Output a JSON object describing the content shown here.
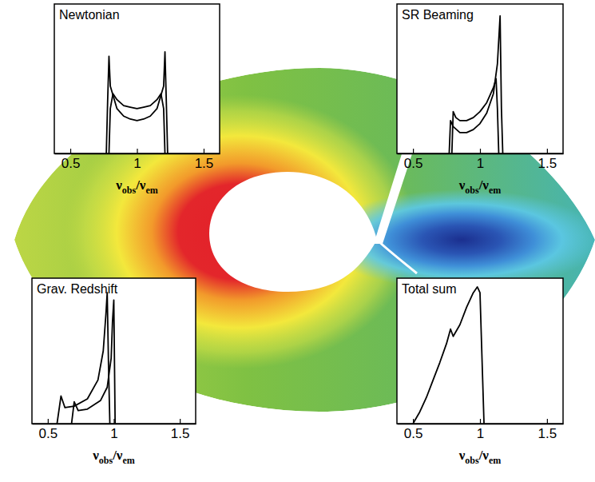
{
  "chart_data": [
    {
      "type": "line",
      "title": "Newtonian",
      "x_label": "νobs/νem",
      "xlim": [
        0.38,
        1.62
      ],
      "xticks": [
        0.5,
        1,
        1.5
      ],
      "ylim": [
        0,
        1
      ],
      "tick_labels": "x",
      "series": [
        {
          "color": "#000000",
          "x": [
            0.77,
            0.78,
            0.79,
            0.8,
            0.85,
            0.9,
            0.95,
            1.0,
            1.05,
            1.1,
            1.15,
            1.2,
            1.21,
            1.22,
            1.23
          ],
          "values": [
            0,
            0.35,
            0.65,
            0.45,
            0.3,
            0.25,
            0.23,
            0.22,
            0.23,
            0.25,
            0.3,
            0.45,
            0.68,
            0.35,
            0
          ]
        },
        {
          "color": "#000000",
          "x": [
            0.79,
            0.8,
            0.82,
            0.85,
            0.9,
            0.95,
            1.0,
            1.05,
            1.1,
            1.15,
            1.18,
            1.2,
            1.21
          ],
          "values": [
            0,
            0.3,
            0.4,
            0.36,
            0.32,
            0.31,
            0.3,
            0.31,
            0.32,
            0.36,
            0.4,
            0.3,
            0
          ]
        }
      ]
    },
    {
      "type": "line",
      "title": "SR Beaming",
      "x_label": "νobs/νem",
      "xlim": [
        0.38,
        1.62
      ],
      "xticks": [
        0.5,
        1,
        1.5
      ],
      "ylim": [
        0,
        1
      ],
      "tick_labels": "x",
      "series": [
        {
          "color": "#000000",
          "x": [
            0.77,
            0.78,
            0.8,
            0.85,
            0.9,
            0.95,
            1.0,
            1.05,
            1.1,
            1.13,
            1.15,
            1.16,
            1.17
          ],
          "values": [
            0,
            0.22,
            0.18,
            0.14,
            0.14,
            0.16,
            0.2,
            0.27,
            0.4,
            0.6,
            0.92,
            0.3,
            0
          ]
        },
        {
          "color": "#000000",
          "x": [
            0.79,
            0.8,
            0.82,
            0.85,
            0.9,
            0.95,
            1.0,
            1.05,
            1.1,
            1.12,
            1.13,
            1.14
          ],
          "values": [
            0,
            0.28,
            0.24,
            0.22,
            0.22,
            0.24,
            0.28,
            0.34,
            0.44,
            0.5,
            0.3,
            0
          ]
        }
      ]
    },
    {
      "type": "line",
      "title": "Grav. Redshift",
      "x_label": "νobs/νem",
      "xlim": [
        0.38,
        1.62
      ],
      "xticks": [
        0.5,
        1,
        1.5
      ],
      "ylim": [
        0,
        1
      ],
      "tick_labels": "x",
      "series": [
        {
          "color": "#000000",
          "x": [
            0.57,
            0.6,
            0.63,
            0.7,
            0.8,
            0.88,
            0.92,
            0.94,
            0.95,
            0.96,
            0.97
          ],
          "values": [
            0,
            0.19,
            0.11,
            0.12,
            0.17,
            0.3,
            0.5,
            0.75,
            0.9,
            0.4,
            0
          ]
        },
        {
          "color": "#000000",
          "x": [
            0.68,
            0.7,
            0.73,
            0.8,
            0.9,
            0.95,
            0.98,
            0.99,
            1.0,
            1.01
          ],
          "values": [
            0,
            0.15,
            0.09,
            0.1,
            0.16,
            0.25,
            0.45,
            0.7,
            0.85,
            0
          ]
        }
      ]
    },
    {
      "type": "line",
      "title": "Total sum",
      "x_label": "νobs/νem",
      "xlim": [
        0.38,
        1.62
      ],
      "xticks": [
        0.5,
        1,
        1.5
      ],
      "ylim": [
        0,
        1
      ],
      "tick_labels": "x",
      "series": [
        {
          "color": "#000000",
          "x": [
            0.5,
            0.55,
            0.6,
            0.65,
            0.7,
            0.75,
            0.78,
            0.8,
            0.85,
            0.9,
            0.95,
            0.98,
            1.0,
            1.02,
            1.03
          ],
          "values": [
            0,
            0.08,
            0.18,
            0.3,
            0.42,
            0.55,
            0.65,
            0.6,
            0.68,
            0.8,
            0.9,
            0.94,
            0.9,
            0.3,
            0
          ]
        }
      ]
    }
  ]
}
